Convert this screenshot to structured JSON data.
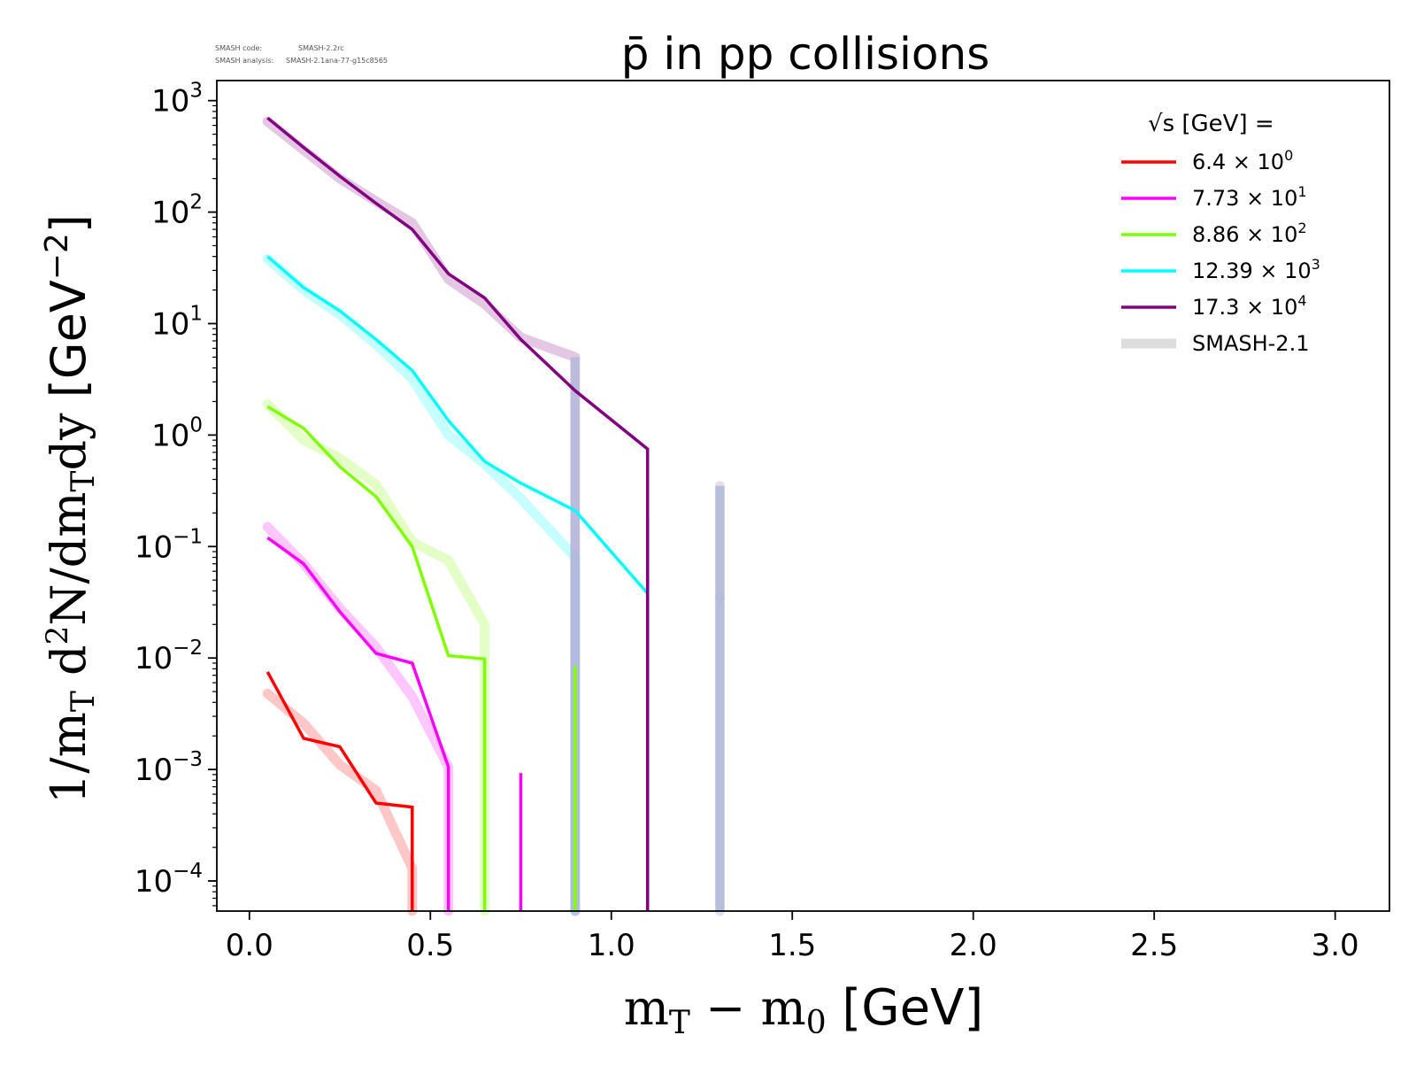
{
  "meta": {
    "code_label": "SMASH code:",
    "code_value": "SMASH-2.2rc",
    "analysis_label": "SMASH analysis:",
    "analysis_value": "SMASH-2.1ana-77-g15c8565"
  },
  "chart_data": {
    "type": "line",
    "title": "p̄ in pp collisions",
    "xlabel": "m_T − m_0 [GeV]",
    "ylabel": "1/m_T d²N/dm_T dy [GeV⁻²]",
    "xlim": [
      -0.09,
      3.15
    ],
    "ylim_log10": [
      -4.27,
      3.18
    ],
    "y_scale": "log",
    "grid": false,
    "legend_position": "top-right",
    "legend_title": "√s [GeV] =",
    "x_ticks": [
      0.0,
      0.5,
      1.0,
      1.5,
      2.0,
      2.5,
      3.0
    ],
    "x_tick_labels": [
      "0.0",
      "0.5",
      "1.0",
      "1.5",
      "2.0",
      "2.5",
      "3.0"
    ],
    "y_ticks": [
      {
        "exp": 3,
        "base": "10",
        "sup": "3"
      },
      {
        "exp": 2,
        "base": "10",
        "sup": "2"
      },
      {
        "exp": 1,
        "base": "10",
        "sup": "1"
      },
      {
        "exp": 0,
        "base": "10",
        "sup": "0"
      },
      {
        "exp": -1,
        "base": "10",
        "sup": "−1"
      },
      {
        "exp": -2,
        "base": "10",
        "sup": "−2"
      },
      {
        "exp": -3,
        "base": "10",
        "sup": "−3"
      },
      {
        "exp": -4,
        "base": "10",
        "sup": "−4"
      }
    ],
    "series": [
      {
        "name": "6.4 × 10⁰",
        "label_main": "6.4",
        "label_exp": "0",
        "color": "#ff0000",
        "x": [
          0.05,
          0.15,
          0.25,
          0.35,
          0.45,
          0.45
        ],
        "y": [
          0.0075,
          0.0019,
          0.0016,
          0.0005,
          0.00046,
          1e-05
        ]
      },
      {
        "name": "7.73 × 10¹",
        "label_main": "7.73",
        "label_exp": "1",
        "color": "#ff00ff",
        "x": [
          0.05,
          0.15,
          0.25,
          0.35,
          0.45,
          0.55,
          0.55
        ],
        "y": [
          0.12,
          0.07,
          0.026,
          0.011,
          0.009,
          0.00105,
          1e-05
        ]
      },
      {
        "name": "7.73 × 10¹ (spike)",
        "color": "#ff00ff",
        "hide_legend": true,
        "x": [
          0.75,
          0.75
        ],
        "y": [
          0.00093,
          1e-05
        ]
      },
      {
        "name": "8.86 × 10²",
        "label_main": "8.86",
        "label_exp": "2",
        "color": "#7fff00",
        "x": [
          0.05,
          0.15,
          0.25,
          0.35,
          0.45,
          0.55,
          0.65,
          0.65
        ],
        "y": [
          1.8,
          1.15,
          0.52,
          0.28,
          0.1,
          0.0105,
          0.0098,
          1e-05
        ]
      },
      {
        "name": "8.86 × 10² (spike)",
        "color": "#7fff00",
        "hide_legend": true,
        "x": [
          0.9,
          0.9
        ],
        "y": [
          0.0085,
          1e-05
        ]
      },
      {
        "name": "12.39 × 10³",
        "label_main": "12.39",
        "label_exp": "3",
        "color": "#00ffff",
        "x": [
          0.05,
          0.15,
          0.25,
          0.35,
          0.45,
          0.55,
          0.65,
          0.75,
          0.9,
          1.1
        ],
        "y": [
          40,
          21,
          13,
          7.2,
          3.8,
          1.35,
          0.58,
          0.37,
          0.21,
          0.038
        ]
      },
      {
        "name": "17.3 × 10⁴",
        "label_main": "17.3",
        "label_exp": "4",
        "color": "#800080",
        "x": [
          0.05,
          0.15,
          0.25,
          0.35,
          0.45,
          0.55,
          0.65,
          0.75,
          0.9,
          1.1,
          1.1
        ],
        "y": [
          700,
          380,
          210,
          120,
          70,
          28,
          17,
          7.2,
          2.5,
          0.75,
          1e-05
        ]
      },
      {
        "name": "17.3 × 10⁴ (spike)",
        "color": "#800080",
        "hide_legend": true,
        "x": [
          1.1,
          1.1
        ],
        "y": [
          0.18,
          1e-05
        ]
      }
    ],
    "reference_series": [
      {
        "name": "SMASH-2.1",
        "of": "6.4 × 10⁰",
        "color": "#ff0000",
        "x": [
          0.05,
          0.15,
          0.25,
          0.35,
          0.45,
          0.45
        ],
        "y": [
          0.0048,
          0.0026,
          0.0011,
          0.00065,
          0.00013,
          1e-05
        ]
      },
      {
        "name": "SMASH-2.1",
        "of": "7.73 × 10¹",
        "color": "#ff00ff",
        "x": [
          0.05,
          0.15,
          0.25,
          0.35,
          0.45,
          0.55,
          0.55
        ],
        "y": [
          0.15,
          0.07,
          0.028,
          0.0125,
          0.0045,
          0.00105,
          1e-05
        ]
      },
      {
        "name": "SMASH-2.1",
        "of": "8.86 × 10²",
        "color": "#7fff00",
        "x": [
          0.05,
          0.15,
          0.25,
          0.35,
          0.45,
          0.55,
          0.65,
          0.65
        ],
        "y": [
          1.9,
          0.9,
          0.62,
          0.36,
          0.11,
          0.075,
          0.02,
          1e-05
        ]
      },
      {
        "name": "SMASH-2.1",
        "of": "12.39 × 10³",
        "color": "#00ffff",
        "x": [
          0.05,
          0.15,
          0.25,
          0.35,
          0.45,
          0.55,
          0.65,
          0.75,
          0.9,
          0.9
        ],
        "y": [
          38,
          20,
          12,
          6.5,
          3.2,
          1.0,
          0.55,
          0.27,
          0.08,
          1e-05
        ]
      },
      {
        "name": "SMASH-2.1",
        "of": "17.3 × 10⁴",
        "color": "#800080",
        "x": [
          0.05,
          0.15,
          0.25,
          0.35,
          0.45,
          0.55,
          0.65,
          0.75,
          0.9,
          0.9
        ],
        "y": [
          650,
          360,
          200,
          125,
          80,
          25,
          15,
          7.5,
          5.0,
          1e-05
        ]
      },
      {
        "name": "SMASH-2.1",
        "of": "spike",
        "color": "#7080c0",
        "x": [
          1.3,
          1.3
        ],
        "y": [
          0.035,
          1e-05
        ]
      },
      {
        "name": "SMASH-2.1",
        "of": "spike",
        "color": "#9070a0",
        "x": [
          1.3,
          1.3
        ],
        "y": [
          0.35,
          0.035
        ]
      }
    ],
    "reference_legend": {
      "name": "SMASH-2.1",
      "color": "#dddddd"
    }
  }
}
